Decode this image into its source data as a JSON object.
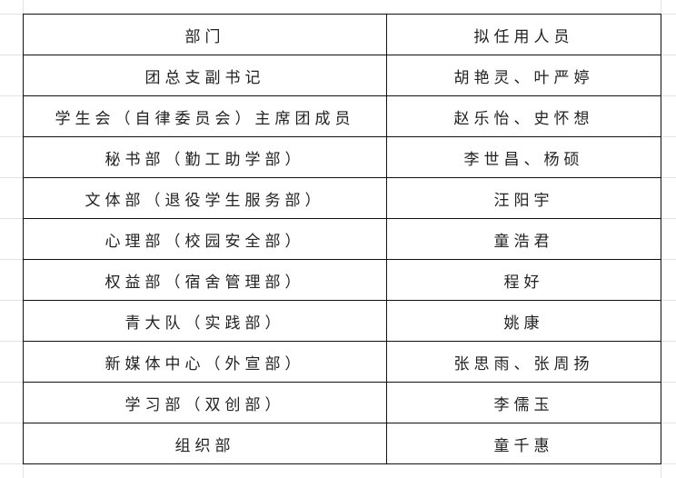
{
  "table": {
    "headers": [
      "部门",
      "拟任用人员"
    ],
    "rows": [
      [
        "团总支副书记",
        "胡艳灵、叶严婷"
      ],
      [
        "学生会（自律委员会）主席团成员",
        "赵乐怡、史怀想"
      ],
      [
        "秘书部（勤工助学部）",
        "李世昌、杨硕"
      ],
      [
        "文体部（退役学生服务部）",
        "汪阳宇"
      ],
      [
        "心理部（校园安全部）",
        "童浩君"
      ],
      [
        "权益部（宿舍管理部）",
        "程好"
      ],
      [
        "青大队（实践部）",
        "姚康"
      ],
      [
        "新媒体中心（外宣部）",
        "张思雨、张周扬"
      ],
      [
        "学习部（双创部）",
        "李儒玉"
      ],
      [
        "组织部",
        "童千惠"
      ]
    ]
  }
}
